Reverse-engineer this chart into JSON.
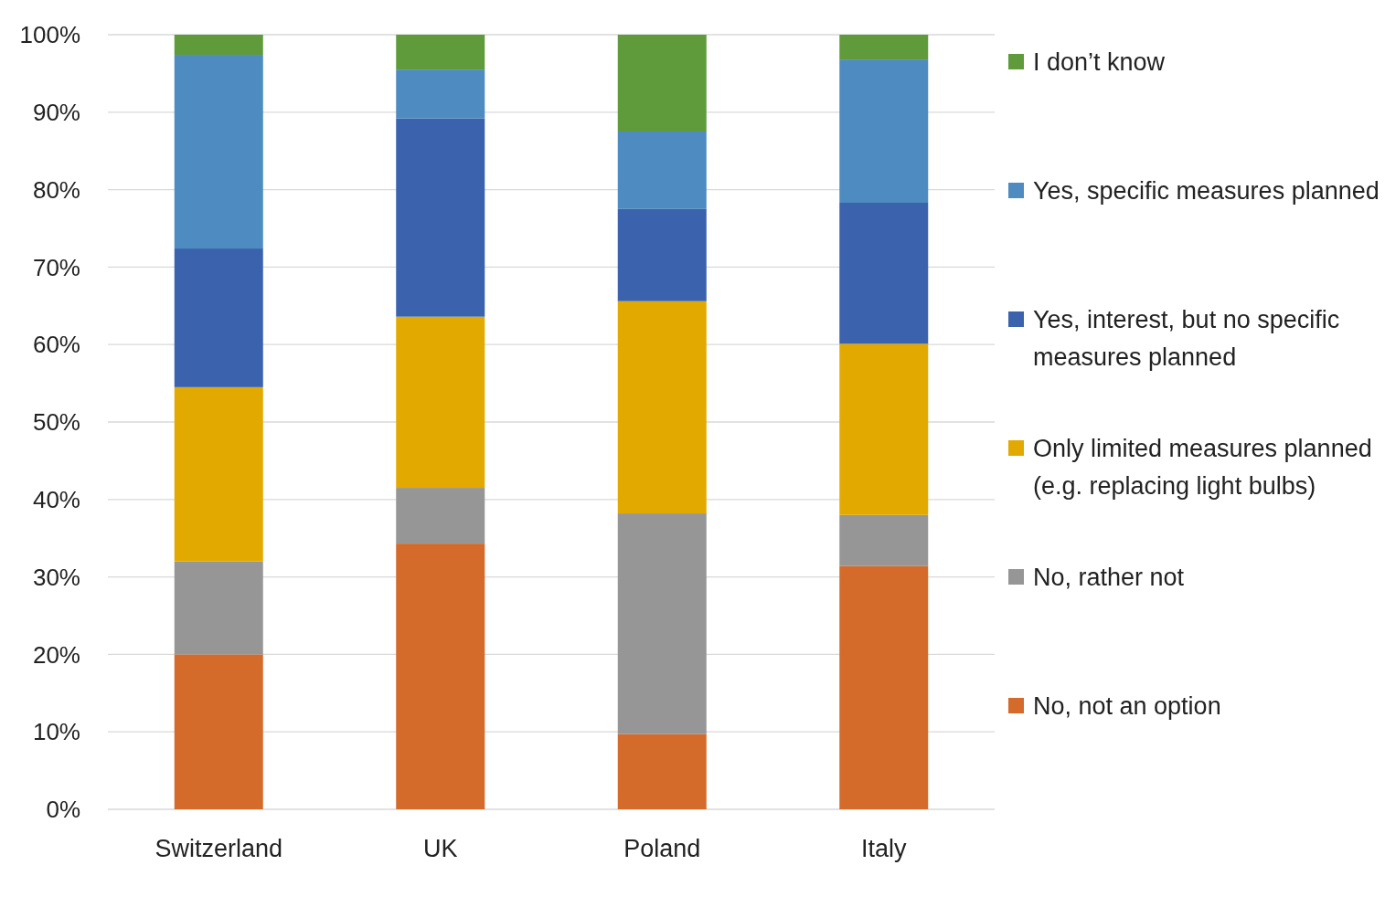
{
  "chart_data": {
    "type": "bar",
    "stacked": true,
    "categories": [
      "Switzerland",
      "UK",
      "Poland",
      "Italy"
    ],
    "series": [
      {
        "name": "No, not an option",
        "color": "#d46b2a",
        "values": [
          20,
          34.3,
          9.7,
          31.4
        ]
      },
      {
        "name": "No, rather not",
        "color": "#969696",
        "values": [
          12,
          7.2,
          28.5,
          6.6
        ]
      },
      {
        "name": "Only limited measures planned (e.g. replacing light bulbs)",
        "color": "#e2aa00",
        "values": [
          22.5,
          22.1,
          27.4,
          22.1
        ]
      },
      {
        "name": "Yes, interest, but no specific measures planned",
        "color": "#3a62ad",
        "values": [
          17.9,
          25.6,
          11.9,
          18.2
        ]
      },
      {
        "name": "Yes, specific measures planned",
        "color": "#4d8bc0",
        "values": [
          25,
          6.3,
          10,
          18.5
        ]
      },
      {
        "name": "I don’t know",
        "color": "#5f9b3a",
        "values": [
          2.6,
          4.5,
          12.5,
          3.2
        ]
      }
    ],
    "ylim": [
      0,
      100
    ],
    "yticks": [
      {
        "value": 0,
        "label": "0%"
      },
      {
        "value": 10,
        "label": "10%"
      },
      {
        "value": 20,
        "label": "20%"
      },
      {
        "value": 30,
        "label": "30%"
      },
      {
        "value": 40,
        "label": "40%"
      },
      {
        "value": 50,
        "label": "50%"
      },
      {
        "value": 60,
        "label": "60%"
      },
      {
        "value": 70,
        "label": "70%"
      },
      {
        "value": 80,
        "label": "80%"
      },
      {
        "value": 90,
        "label": "90%"
      },
      {
        "value": 100,
        "label": "100%"
      }
    ],
    "grid": "y",
    "legend": "right"
  }
}
